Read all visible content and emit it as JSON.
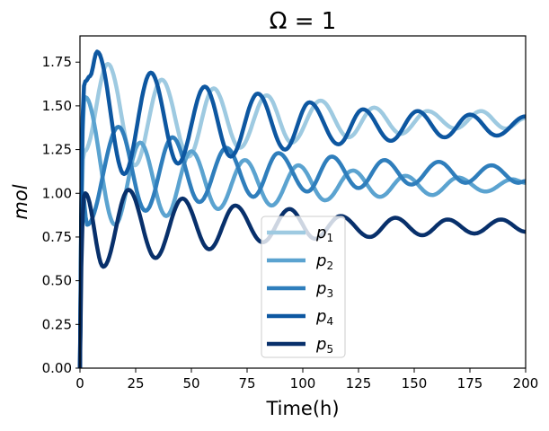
{
  "chart_data": {
    "type": "line",
    "title": "Ω = 1",
    "xlabel": "Time(h)",
    "ylabel": "mol",
    "xlim": [
      0,
      200
    ],
    "ylim": [
      0,
      1.9
    ],
    "xticks": [
      0,
      25,
      50,
      75,
      100,
      125,
      150,
      175,
      200
    ],
    "yticks": [
      0.0,
      0.25,
      0.5,
      0.75,
      1.0,
      1.25,
      1.5,
      1.75
    ],
    "grid": false,
    "legend_position": "lower-center",
    "series": [
      {
        "name": "p1",
        "color": "#9ecae1",
        "points": [
          [
            0,
            0
          ],
          [
            2,
            1.24
          ],
          [
            12.5,
            1.74
          ],
          [
            24.6,
            1.16
          ],
          [
            36.7,
            1.65
          ],
          [
            48.8,
            1.21
          ],
          [
            60,
            1.6
          ],
          [
            71.7,
            1.26
          ],
          [
            83.8,
            1.56
          ],
          [
            95,
            1.29
          ],
          [
            108,
            1.53
          ],
          [
            120.5,
            1.32
          ],
          [
            132,
            1.49
          ],
          [
            144,
            1.34
          ],
          [
            156,
            1.47
          ],
          [
            168.5,
            1.37
          ],
          [
            180,
            1.47
          ],
          [
            191,
            1.37
          ],
          [
            200,
            1.43
          ]
        ]
      },
      {
        "name": "p2",
        "color": "#5ba3d0",
        "points": [
          [
            0,
            0
          ],
          [
            2.4,
            1.55
          ],
          [
            15.7,
            0.82
          ],
          [
            27,
            1.29
          ],
          [
            38.7,
            0.87
          ],
          [
            50,
            1.24
          ],
          [
            62,
            0.91
          ],
          [
            74,
            1.19
          ],
          [
            86,
            0.93
          ],
          [
            98,
            1.16
          ],
          [
            110,
            0.96
          ],
          [
            122.5,
            1.13
          ],
          [
            134.6,
            0.98
          ],
          [
            146,
            1.1
          ],
          [
            158,
            0.99
          ],
          [
            169.7,
            1.09
          ],
          [
            182,
            1.01
          ],
          [
            194,
            1.08
          ],
          [
            200,
            1.06
          ]
        ]
      },
      {
        "name": "p3",
        "color": "#2f7ebc",
        "points": [
          [
            0,
            0
          ],
          [
            1.2,
            1.0
          ],
          [
            3.2,
            0.82
          ],
          [
            17.3,
            1.38
          ],
          [
            29.4,
            0.9
          ],
          [
            41.5,
            1.32
          ],
          [
            53.6,
            0.95
          ],
          [
            65.7,
            1.26
          ],
          [
            77.8,
            0.98
          ],
          [
            89,
            1.23
          ],
          [
            102,
            1.01
          ],
          [
            113,
            1.21
          ],
          [
            125,
            1.03
          ],
          [
            136.6,
            1.19
          ],
          [
            148.7,
            1.05
          ],
          [
            161,
            1.18
          ],
          [
            173,
            1.06
          ],
          [
            184.6,
            1.16
          ],
          [
            196.7,
            1.06
          ],
          [
            200,
            1.07
          ]
        ]
      },
      {
        "name": "p4",
        "color": "#0d57a1",
        "points": [
          [
            0,
            0
          ],
          [
            2.4,
            1.64
          ],
          [
            4.5,
            1.67
          ],
          [
            7.7,
            1.81
          ],
          [
            19.8,
            1.11
          ],
          [
            31.8,
            1.69
          ],
          [
            44,
            1.17
          ],
          [
            56,
            1.61
          ],
          [
            67.7,
            1.21
          ],
          [
            79.8,
            1.57
          ],
          [
            92,
            1.25
          ],
          [
            103,
            1.52
          ],
          [
            116,
            1.28
          ],
          [
            127,
            1.48
          ],
          [
            139.5,
            1.3
          ],
          [
            151.5,
            1.47
          ],
          [
            163.6,
            1.32
          ],
          [
            175,
            1.45
          ],
          [
            187,
            1.33
          ],
          [
            200,
            1.44
          ]
        ]
      },
      {
        "name": "p5",
        "color": "#08306b",
        "points": [
          [
            0,
            0
          ],
          [
            2.4,
            1.0
          ],
          [
            10.5,
            0.58
          ],
          [
            21.8,
            1.02
          ],
          [
            33.9,
            0.63
          ],
          [
            46,
            0.97
          ],
          [
            58,
            0.68
          ],
          [
            69.7,
            0.93
          ],
          [
            82,
            0.72
          ],
          [
            94,
            0.91
          ],
          [
            105.5,
            0.74
          ],
          [
            117,
            0.87
          ],
          [
            130,
            0.75
          ],
          [
            141.5,
            0.86
          ],
          [
            153.6,
            0.76
          ],
          [
            165,
            0.85
          ],
          [
            177,
            0.77
          ],
          [
            189,
            0.85
          ],
          [
            200,
            0.78
          ]
        ]
      }
    ]
  }
}
